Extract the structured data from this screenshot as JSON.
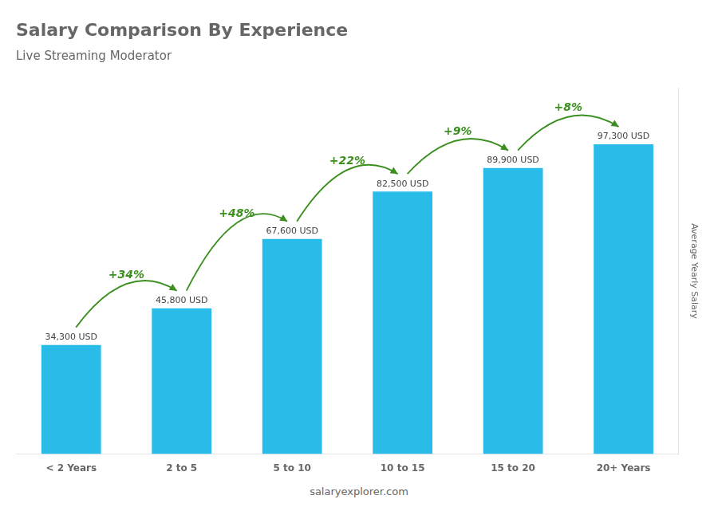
{
  "chart_data": {
    "type": "bar",
    "title": "Salary Comparison By Experience",
    "subtitle": "Live Streaming Moderator",
    "ylabel": "Average Yearly Salary",
    "footer": "salaryexplorer.com",
    "categories": [
      "< 2 Years",
      "2 to 5",
      "5 to 10",
      "10 to 15",
      "15 to 20",
      "20+ Years"
    ],
    "values": [
      34300,
      45800,
      67600,
      82500,
      89900,
      97300
    ],
    "value_labels": [
      "34,300 USD",
      "45,800 USD",
      "67,600 USD",
      "82,500 USD",
      "89,900 USD",
      "97,300 USD"
    ],
    "annotations": [
      "+34%",
      "+48%",
      "+22%",
      "+9%",
      "+8%"
    ],
    "color": "#29bce8",
    "ylim": [
      0,
      115000
    ],
    "grid": false,
    "data_labels": true,
    "tick_labels": "x"
  }
}
